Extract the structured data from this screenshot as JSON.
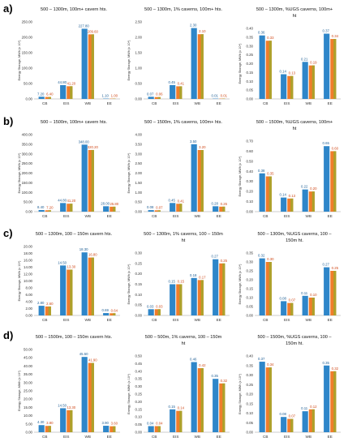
{
  "colors": {
    "s1": "#2e86c9",
    "s2": "#f07d2b",
    "s3": "#a5a52a",
    "dlabel_blue": "#1f5f95",
    "dlabel_red": "#d04a1a"
  },
  "rows": [
    {
      "label": "a)"
    },
    {
      "label": "b)"
    },
    {
      "label": "c)"
    },
    {
      "label": "d)"
    }
  ],
  "chart_data": [
    {
      "type": "bar",
      "title_lines": [
        "500 – 1300m, 100m+ cavern hts."
      ],
      "ylabel": "Energy Storage, MWh (x 10⁴)",
      "categories": [
        "CB",
        "EIS",
        "WB",
        "EE"
      ],
      "yticks": [
        "0.00",
        "50.00",
        "100.00",
        "150.00",
        "200.00",
        "250.00"
      ],
      "ylim": [
        0,
        250
      ],
      "values_blue": [
        7.2,
        44.8,
        227.8,
        1.1
      ],
      "values_red": [
        6.4,
        41.2,
        209.6,
        1.0
      ],
      "labels_blue": [
        "7.20",
        "44.80",
        "227.80",
        "1.10"
      ],
      "labels_red": [
        "6.40",
        "41.20",
        "209.60",
        "1.00"
      ]
    },
    {
      "type": "bar",
      "title_lines": [
        "500 – 1300m, 1% caverns, 100m+ hts."
      ],
      "ylabel": "Energy Storage, MWh (x 10⁴)",
      "categories": [
        "CB",
        "EIS",
        "WB",
        "EE"
      ],
      "yticks": [
        "0.00",
        "0.50",
        "1.00",
        "1.50",
        "2.00",
        "2.50"
      ],
      "ylim": [
        0,
        2.5
      ],
      "values_blue": [
        0.07,
        0.45,
        2.3,
        0.01
      ],
      "values_red": [
        0.06,
        0.41,
        2.1,
        0.01
      ],
      "labels_blue": [
        "0.07",
        "0.45",
        "2.30",
        "0.01"
      ],
      "labels_red": [
        "0.06",
        "0.41",
        "2.10",
        "0.01"
      ]
    },
    {
      "type": "bar",
      "title_lines": [
        "500 – 1300m, %UGS caverns, 100m+",
        "ht"
      ],
      "ylabel": "Energy Storage, MWh (x 10⁴)",
      "categories": [
        "CB",
        "EIS",
        "WB",
        "EE"
      ],
      "yticks": [
        "0.00",
        "0.05",
        "0.10",
        "0.15",
        "0.20",
        "0.25",
        "0.30",
        "0.35",
        "0.40"
      ],
      "ylim": [
        0,
        0.4
      ],
      "values_blue": [
        0.36,
        0.14,
        0.21,
        0.37
      ],
      "values_red": [
        0.33,
        0.13,
        0.19,
        0.34
      ],
      "labels_blue": [
        "0.36",
        "0.14",
        "0.21",
        "0.37"
      ],
      "labels_red": [
        "0.33",
        "0.13",
        "0.19",
        "0.34"
      ]
    },
    {
      "type": "bar",
      "title_lines": [
        "500 – 1500m, 100m+ cavern hts."
      ],
      "ylabel": "Energy Storage, MWh (x 10⁴)",
      "categories": [
        "CB",
        "EIS",
        "WB",
        "EE"
      ],
      "yticks": [
        "0.00",
        "50.00",
        "100.00",
        "150.00",
        "200.00",
        "250.00",
        "300.00",
        "350.00",
        "400.00"
      ],
      "ylim": [
        0,
        400
      ],
      "values_blue": [
        8.4,
        44.8,
        348.0,
        28.0
      ],
      "values_red": [
        7.2,
        41.2,
        320.2,
        25.8
      ],
      "labels_blue": [
        "8.40",
        "44.80",
        "348.00",
        "28.00"
      ],
      "labels_red": [
        "7.20",
        "41.20",
        "320.20",
        "25.80"
      ]
    },
    {
      "type": "bar",
      "title_lines": [
        "500 – 1500m, 1% caverns, 100m+ hts."
      ],
      "ylabel": "Energy Storage, MWh (x 10⁴)",
      "categories": [
        "CB",
        "EIS",
        "WB",
        "EE"
      ],
      "yticks": [
        "0.00",
        "0.50",
        "1.00",
        "1.50",
        "2.00",
        "2.50",
        "3.00",
        "3.50",
        "4.00"
      ],
      "ylim": [
        0,
        4
      ],
      "values_blue": [
        0.08,
        0.45,
        3.5,
        0.28
      ],
      "values_red": [
        0.07,
        0.41,
        3.2,
        0.26
      ],
      "labels_blue": [
        "0.08",
        "0.45",
        "3.50",
        "0.28"
      ],
      "labels_red": [
        "0.07",
        "0.41",
        "3.20",
        "0.26"
      ]
    },
    {
      "type": "bar",
      "title_lines": [
        "500 – 1500m, %UGS caverns, 100m+",
        "ht"
      ],
      "ylabel": "Energy Storage, MWh (x 10⁴)",
      "categories": [
        "CB",
        "EIS",
        "WB",
        "EE"
      ],
      "yticks": [
        "0.00",
        "0.10",
        "0.20",
        "0.30",
        "0.40",
        "0.50",
        "0.60",
        "0.70"
      ],
      "ylim": [
        0,
        0.7
      ],
      "values_blue": [
        0.38,
        0.14,
        0.22,
        0.65
      ],
      "values_red": [
        0.35,
        0.13,
        0.2,
        0.6
      ],
      "labels_blue": [
        "0.38",
        "0.14",
        "0.22",
        "0.65"
      ],
      "labels_red": [
        "0.35",
        "0.13",
        "0.20",
        "0.60"
      ]
    },
    {
      "type": "bar",
      "title_lines": [
        "500 – 1300m, 100 – 150m cavern hts."
      ],
      "ylabel": "Energy Storage, MWh (x 10⁴)",
      "categories": [
        "CB",
        "EIS",
        "WB",
        "EE"
      ],
      "yticks": [
        "0.00",
        "2.00",
        "4.00",
        "6.00",
        "8.00",
        "10.00",
        "12.00",
        "14.00",
        "16.00",
        "18.00",
        "20.00"
      ],
      "ylim": [
        0,
        20
      ],
      "values_blue": [
        2.8,
        14.5,
        18.3,
        0.69
      ],
      "values_red": [
        2.6,
        13.3,
        16.8,
        0.64
      ],
      "labels_blue": [
        "2.80",
        "14.50",
        "18.30",
        "0.69"
      ],
      "labels_red": [
        "2.60",
        "13.30",
        "16.80",
        "0.64"
      ]
    },
    {
      "type": "bar",
      "title_lines": [
        "500 – 1300m, 1% caverns, 100 – 150m",
        "ht"
      ],
      "ylabel": "Energy Storage, MWh (x 10⁴)",
      "categories": [
        "CB",
        "EIS",
        "WB",
        "EE"
      ],
      "yticks": [
        "0.00",
        "0.05",
        "0.10",
        "0.15",
        "0.20",
        "0.25",
        "0.30"
      ],
      "ylim": [
        0,
        0.3
      ],
      "values_blue": [
        0.03,
        0.15,
        0.18,
        0.27
      ],
      "values_red": [
        0.03,
        0.15,
        0.17,
        0.25
      ],
      "labels_blue": [
        "0.03",
        "0.15",
        "0.18",
        "0.27"
      ],
      "labels_red": [
        "0.03",
        "0.15",
        "0.17",
        "0.25"
      ]
    },
    {
      "type": "bar",
      "title_lines": [
        "500 – 1300m, %UGS caverns, 100 –",
        "150m ht."
      ],
      "ylabel": "Energy Storage, MWh (x 10⁴)",
      "categories": [
        "CB",
        "EIS",
        "WB",
        "EE"
      ],
      "yticks": [
        "0.00",
        "0.05",
        "0.10",
        "0.15",
        "0.20",
        "0.25",
        "0.30",
        "0.35"
      ],
      "ylim": [
        0,
        0.35
      ],
      "values_blue": [
        0.32,
        0.08,
        0.11,
        0.27
      ],
      "values_red": [
        0.3,
        0.07,
        0.1,
        0.25
      ],
      "labels_blue": [
        "0.32",
        "0.08",
        "0.11",
        "0.27"
      ],
      "labels_red": [
        "0.30",
        "0.07",
        "0.10",
        "0.25"
      ]
    },
    {
      "type": "bar",
      "title_lines": [
        "500 – 1500m, 100 – 150m cavern hts."
      ],
      "ylabel": "Energy Storage, MWh (x 10⁴)",
      "categories": [
        "CB",
        "EIS",
        "WB",
        "EE"
      ],
      "yticks": [
        "0.00",
        "5.00",
        "10.00",
        "15.00",
        "20.00",
        "25.00",
        "30.00",
        "35.00",
        "40.00",
        "45.00",
        "50.00"
      ],
      "ylim": [
        0,
        50
      ],
      "values_blue": [
        4.3,
        14.5,
        45.5,
        3.9
      ],
      "values_red": [
        3.8,
        13.3,
        41.9,
        3.6
      ],
      "labels_blue": [
        "4.30",
        "14.50",
        "45.50",
        "3.90"
      ],
      "labels_red": [
        "3.80",
        "13.30",
        "41.90",
        "3.60"
      ]
    },
    {
      "type": "bar",
      "title_lines": [
        "500 – 500m, 1% caverns, 100 – 150m",
        "ht"
      ],
      "ylabel": "Energy Storage, MWh (x 10⁴)",
      "categories": [
        "CB",
        "EIS",
        "WB",
        "EE"
      ],
      "yticks": [
        "0.00",
        "0.05",
        "0.10",
        "0.15",
        "0.20",
        "0.25",
        "0.30",
        "0.35",
        "0.40",
        "0.45",
        "0.50"
      ],
      "ylim": [
        0,
        0.5
      ],
      "values_blue": [
        0.04,
        0.15,
        0.46,
        0.35
      ],
      "values_red": [
        0.04,
        0.14,
        0.42,
        0.32
      ],
      "labels_blue": [
        "0.04",
        "0.15",
        "0.46",
        "0.35"
      ],
      "labels_red": [
        "0.04",
        "0.14",
        "0.42",
        "0.32"
      ]
    },
    {
      "type": "bar",
      "title_lines": [
        "500 – 1500m, %UGS caverns, 100 –",
        "150m ht."
      ],
      "ylabel": "Energy Storage, MWh (x 10⁴)",
      "categories": [
        "CB",
        "EIS",
        "WB",
        "EE"
      ],
      "yticks": [
        "0.00",
        "0.05",
        "0.10",
        "0.15",
        "0.20",
        "0.25",
        "0.30",
        "0.35",
        "0.40"
      ],
      "ylim": [
        0,
        0.4
      ],
      "values_blue": [
        0.37,
        0.08,
        0.11,
        0.35
      ],
      "values_red": [
        0.34,
        0.07,
        0.12,
        0.32
      ],
      "labels_blue": [
        "0.37",
        "0.08",
        "0.11",
        "0.35"
      ],
      "labels_red": [
        "0.34",
        "0.07",
        "0.12",
        "0.32"
      ]
    }
  ]
}
